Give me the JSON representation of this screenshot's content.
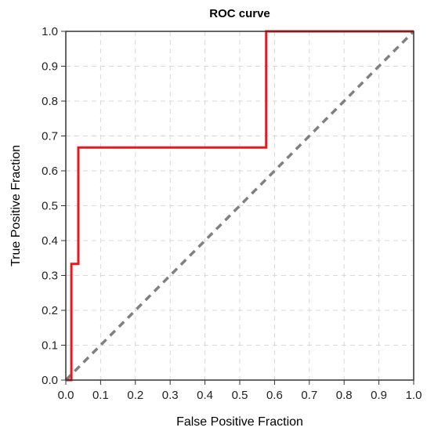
{
  "chart_data": {
    "type": "line",
    "title": "ROC curve",
    "xlabel": "False Positive Fraction",
    "ylabel": "True Positive Fraction",
    "xlim": [
      0,
      1
    ],
    "ylim": [
      0,
      1
    ],
    "x_ticks": [
      "0.0",
      "0.1",
      "0.2",
      "0.3",
      "0.4",
      "0.5",
      "0.6",
      "0.7",
      "0.8",
      "0.9",
      "1.0"
    ],
    "y_ticks": [
      "0.0",
      "0.1",
      "0.2",
      "0.3",
      "0.4",
      "0.5",
      "0.6",
      "0.7",
      "0.8",
      "0.9",
      "1.0"
    ],
    "grid": true,
    "legend": "none",
    "series": [
      {
        "style": "solid",
        "color": "#e8191e",
        "x": [
          0.0,
          0.0,
          0.016,
          0.016,
          0.036,
          0.036,
          0.576,
          0.576,
          1.0
        ],
        "y": [
          0.0,
          0.0,
          0.0,
          0.333,
          0.333,
          0.667,
          0.667,
          1.0,
          1.0
        ]
      },
      {
        "style": "dashed",
        "color": "#808080",
        "x": [
          0.0,
          1.0
        ],
        "y": [
          0.0,
          1.0
        ]
      }
    ]
  }
}
